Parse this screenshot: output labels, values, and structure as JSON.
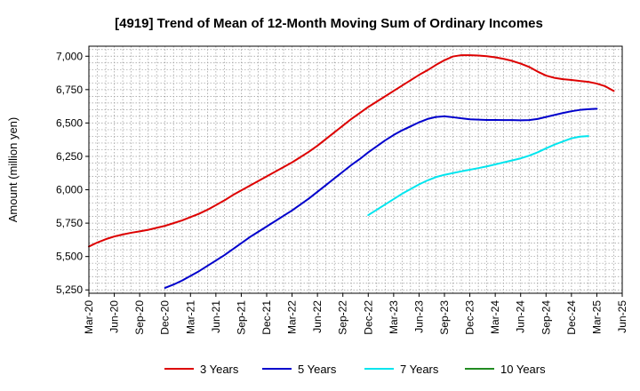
{
  "chart_data": {
    "type": "line",
    "title": "[4919]  Trend of Mean of 12-Month Moving Sum of Ordinary Incomes",
    "xlabel": "",
    "ylabel": "Amount (million yen)",
    "ylim": [
      5225,
      7075
    ],
    "yticks": [
      5250,
      5500,
      5750,
      6000,
      6250,
      6500,
      6750,
      7000
    ],
    "ytick_labels": [
      "5,250",
      "5,500",
      "5,750",
      "6,000",
      "6,250",
      "6,500",
      "6,750",
      "7,000"
    ],
    "x_tick_labels": [
      "Mar-20",
      "Jun-20",
      "Sep-20",
      "Dec-20",
      "Mar-21",
      "Jun-21",
      "Sep-21",
      "Dec-21",
      "Mar-22",
      "Jun-22",
      "Sep-22",
      "Dec-22",
      "Mar-23",
      "Jun-23",
      "Sep-23",
      "Dec-23",
      "Mar-24",
      "Jun-24",
      "Sep-24",
      "Dec-24",
      "Mar-25",
      "Jun-25"
    ],
    "x_start_month": "Mar-20",
    "grid": true,
    "legend_position": "bottom",
    "series": [
      {
        "name": "3 Years",
        "color": "#dd0000",
        "start_index": 0,
        "values": [
          5575,
          5605,
          5630,
          5650,
          5665,
          5678,
          5688,
          5700,
          5715,
          5730,
          5750,
          5770,
          5795,
          5820,
          5850,
          5885,
          5920,
          5960,
          5995,
          6030,
          6065,
          6100,
          6135,
          6170,
          6205,
          6245,
          6285,
          6330,
          6380,
          6430,
          6480,
          6530,
          6575,
          6620,
          6660,
          6700,
          6740,
          6780,
          6820,
          6860,
          6895,
          6935,
          6970,
          6998,
          7008,
          7008,
          7005,
          7000,
          6992,
          6980,
          6965,
          6945,
          6920,
          6885,
          6855,
          6838,
          6828,
          6822,
          6815,
          6808,
          6795,
          6775,
          6740
        ]
      },
      {
        "name": "5 Years",
        "color": "#0000cc",
        "start_index": 9,
        "values": [
          5265,
          5290,
          5320,
          5355,
          5390,
          5430,
          5470,
          5510,
          5555,
          5600,
          5645,
          5685,
          5725,
          5765,
          5805,
          5845,
          5890,
          5935,
          5985,
          6035,
          6085,
          6135,
          6185,
          6230,
          6280,
          6325,
          6370,
          6410,
          6445,
          6475,
          6505,
          6530,
          6545,
          6550,
          6543,
          6535,
          6528,
          6525,
          6523,
          6523,
          6522,
          6522,
          6520,
          6522,
          6530,
          6545,
          6560,
          6575,
          6588,
          6598,
          6603,
          6607
        ]
      },
      {
        "name": "7 Years",
        "color": "#00e5ee",
        "start_index": 33,
        "values": [
          5810,
          5850,
          5890,
          5930,
          5970,
          6005,
          6040,
          6070,
          6095,
          6112,
          6125,
          6138,
          6150,
          6162,
          6175,
          6190,
          6205,
          6220,
          6235,
          6255,
          6280,
          6310,
          6338,
          6362,
          6385,
          6398,
          6402
        ]
      },
      {
        "name": "10 Years",
        "color": "#228b22",
        "start_index": 0,
        "values": []
      }
    ]
  }
}
